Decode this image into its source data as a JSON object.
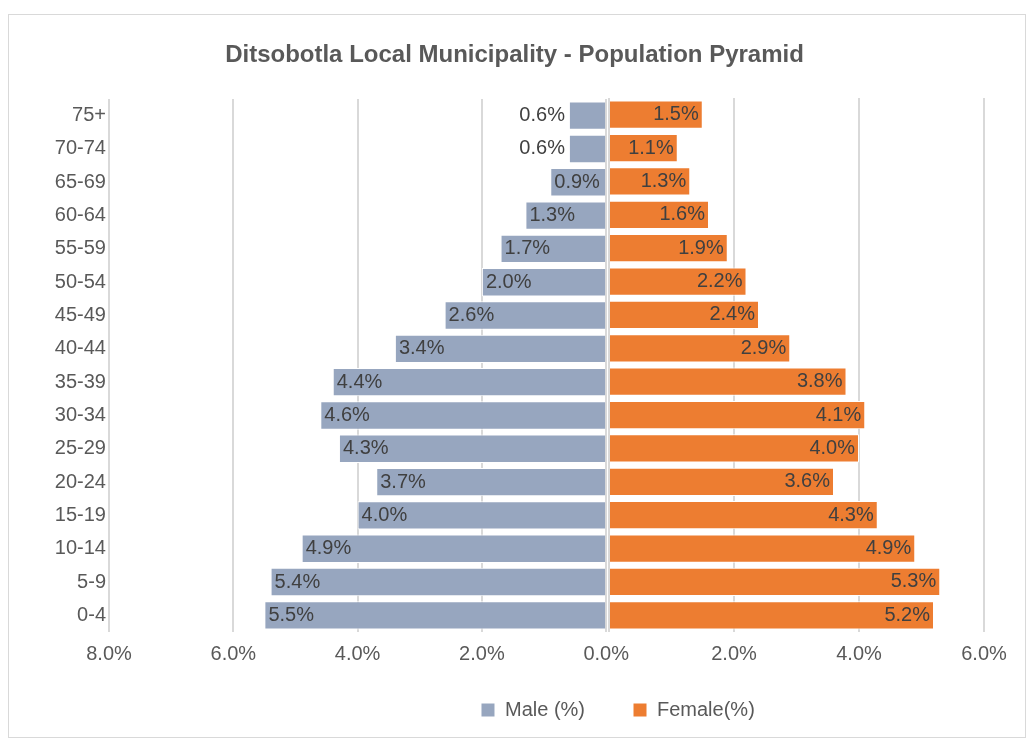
{
  "chart_data": [
    {
      "type": "bar",
      "orientation": "horizontal",
      "title": "Ditsobotla Local Municipality - Population Pyramid",
      "categories": [
        "75+",
        "70-74",
        "65-69",
        "60-64",
        "55-59",
        "50-54",
        "45-49",
        "40-44",
        "35-39",
        "30-34",
        "25-29",
        "20-24",
        "15-19",
        "10-14",
        "5-9",
        "0-4"
      ],
      "series": [
        {
          "name": "Male (%)",
          "color": "#97a6bf",
          "values": [
            0.6,
            0.6,
            0.9,
            1.3,
            1.7,
            2.0,
            2.6,
            3.4,
            4.4,
            4.6,
            4.3,
            3.7,
            4.0,
            4.9,
            5.4,
            5.5
          ],
          "value_labels": [
            "0.6%",
            "0.6%",
            "0.9%",
            "1.3%",
            "1.7%",
            "2.0%",
            "2.6%",
            "3.4%",
            "4.4%",
            "4.6%",
            "4.3%",
            "3.7%",
            "4.0%",
            "4.9%",
            "5.4%",
            "5.5%"
          ]
        }
      ],
      "xlim": [
        8,
        0
      ],
      "xticks": [
        {
          "value": 8,
          "label": "8.0%"
        },
        {
          "value": 6,
          "label": "6.0%"
        },
        {
          "value": 4,
          "label": "4.0%"
        },
        {
          "value": 2,
          "label": "2.0%"
        },
        {
          "value": 0,
          "label": "0.0%"
        }
      ],
      "grid": "x",
      "legend": "bottom"
    },
    {
      "type": "bar",
      "orientation": "horizontal",
      "tick_labels": "x",
      "categories": [
        null,
        null,
        null,
        null,
        null,
        null,
        null,
        null,
        null,
        null,
        null,
        null,
        null,
        null,
        null,
        null
      ],
      "series": [
        {
          "name": "Female(%)",
          "color": "#ed7d31",
          "values": [
            1.5,
            1.1,
            1.3,
            1.6,
            1.9,
            2.2,
            2.4,
            2.9,
            3.8,
            4.1,
            4.0,
            3.6,
            4.3,
            4.9,
            5.3,
            5.2
          ],
          "value_labels": [
            "1.5%",
            "1.1%",
            "1.3%",
            "1.6%",
            "1.9%",
            "2.2%",
            "2.4%",
            "2.9%",
            "3.8%",
            "4.1%",
            "4.0%",
            "3.6%",
            "4.3%",
            "4.9%",
            "5.3%",
            "5.2%"
          ]
        }
      ],
      "xlim": [
        0,
        6
      ],
      "xticks": [
        {
          "value": 0,
          "label": null
        },
        {
          "value": 2,
          "label": "2.0%"
        },
        {
          "value": 4,
          "label": "4.0%"
        },
        {
          "value": 6,
          "label": "6.0%"
        }
      ],
      "grid": "x",
      "legend": "bottom"
    }
  ]
}
